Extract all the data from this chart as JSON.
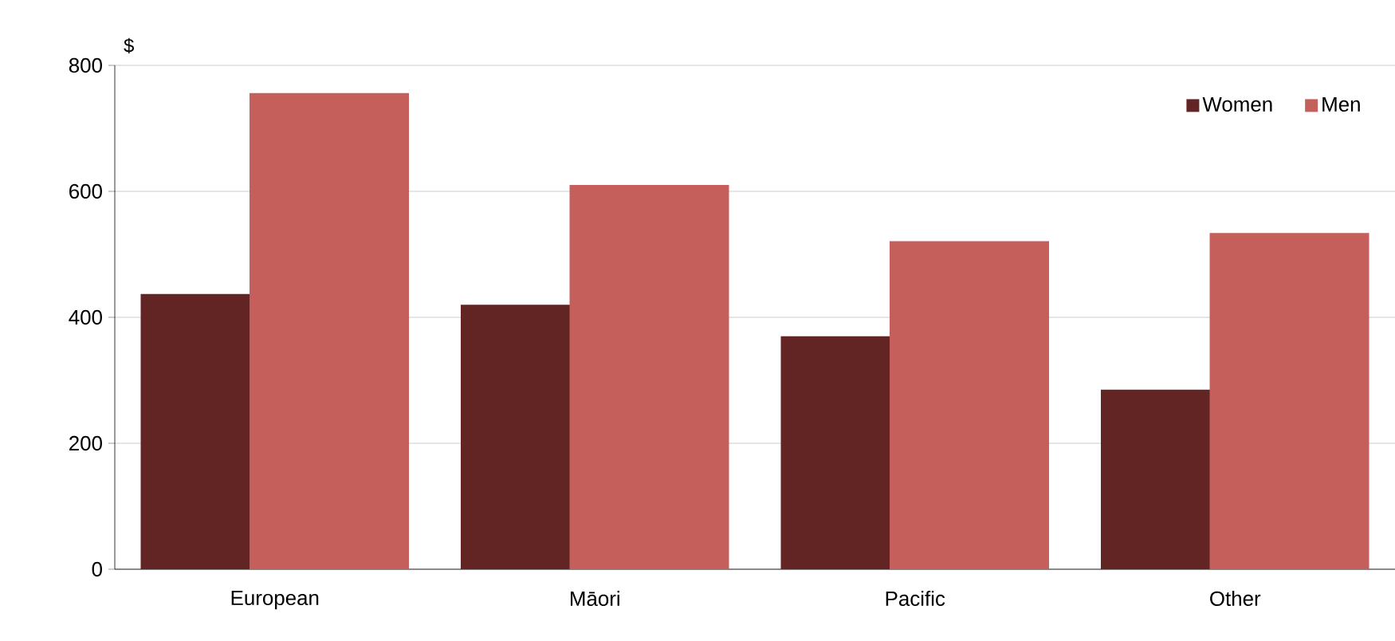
{
  "chart_data": {
    "type": "bar",
    "ylabel": "$",
    "categories": [
      "European",
      "Māori",
      "Pacific",
      "Other"
    ],
    "series": [
      {
        "name": "Women",
        "color": "#632523",
        "values": [
          437,
          420,
          370,
          285
        ]
      },
      {
        "name": "Men",
        "color": "#c55f5c",
        "values": [
          756,
          610,
          521,
          534
        ]
      }
    ],
    "ylim": [
      0,
      800
    ],
    "yticks": [
      0,
      200,
      400,
      600,
      800
    ],
    "grid": "y",
    "legend": "top right"
  }
}
